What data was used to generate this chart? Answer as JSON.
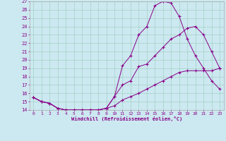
{
  "xlabel": "Windchill (Refroidissement éolien,°C)",
  "bg_color": "#cce8f0",
  "line_color": "#880088",
  "grid_color": "#99ccbb",
  "xlim": [
    -0.5,
    23.5
  ],
  "ylim": [
    14,
    27
  ],
  "xticks": [
    0,
    1,
    2,
    3,
    4,
    5,
    6,
    7,
    8,
    9,
    10,
    11,
    12,
    13,
    14,
    15,
    16,
    17,
    18,
    19,
    20,
    21,
    22,
    23
  ],
  "yticks": [
    14,
    15,
    16,
    17,
    18,
    19,
    20,
    21,
    22,
    23,
    24,
    25,
    26,
    27
  ],
  "curve1_x": [
    0,
    1,
    2,
    3,
    4,
    5,
    6,
    7,
    8,
    9,
    10,
    11,
    12,
    13,
    14,
    15,
    16,
    17,
    18,
    19,
    20,
    21,
    22,
    23
  ],
  "curve1_y": [
    15.5,
    15.0,
    14.8,
    14.2,
    14.0,
    14.0,
    14.0,
    14.0,
    14.0,
    14.2,
    15.6,
    17.0,
    17.5,
    19.2,
    19.5,
    20.5,
    21.5,
    22.5,
    23.0,
    23.8,
    24.0,
    23.0,
    21.0,
    19.0
  ],
  "curve2_x": [
    0,
    1,
    2,
    3,
    4,
    5,
    6,
    7,
    8,
    9,
    10,
    11,
    12,
    13,
    14,
    15,
    16,
    17,
    18,
    19,
    20,
    21,
    22,
    23
  ],
  "curve2_y": [
    15.5,
    15.0,
    14.8,
    14.2,
    14.0,
    14.0,
    14.0,
    14.0,
    14.0,
    14.2,
    15.6,
    19.3,
    20.5,
    23.0,
    24.0,
    26.5,
    27.0,
    26.8,
    25.2,
    22.5,
    20.5,
    19.0,
    17.5,
    16.5
  ],
  "curve3_x": [
    0,
    1,
    2,
    3,
    4,
    5,
    6,
    7,
    8,
    9,
    10,
    11,
    12,
    13,
    14,
    15,
    16,
    17,
    18,
    19,
    20,
    21,
    22,
    23
  ],
  "curve3_y": [
    15.5,
    15.0,
    14.8,
    14.2,
    14.0,
    14.0,
    14.0,
    14.0,
    14.0,
    14.2,
    14.5,
    15.2,
    15.6,
    16.0,
    16.5,
    17.0,
    17.5,
    18.0,
    18.5,
    18.7,
    18.7,
    18.7,
    18.7,
    19.0
  ]
}
